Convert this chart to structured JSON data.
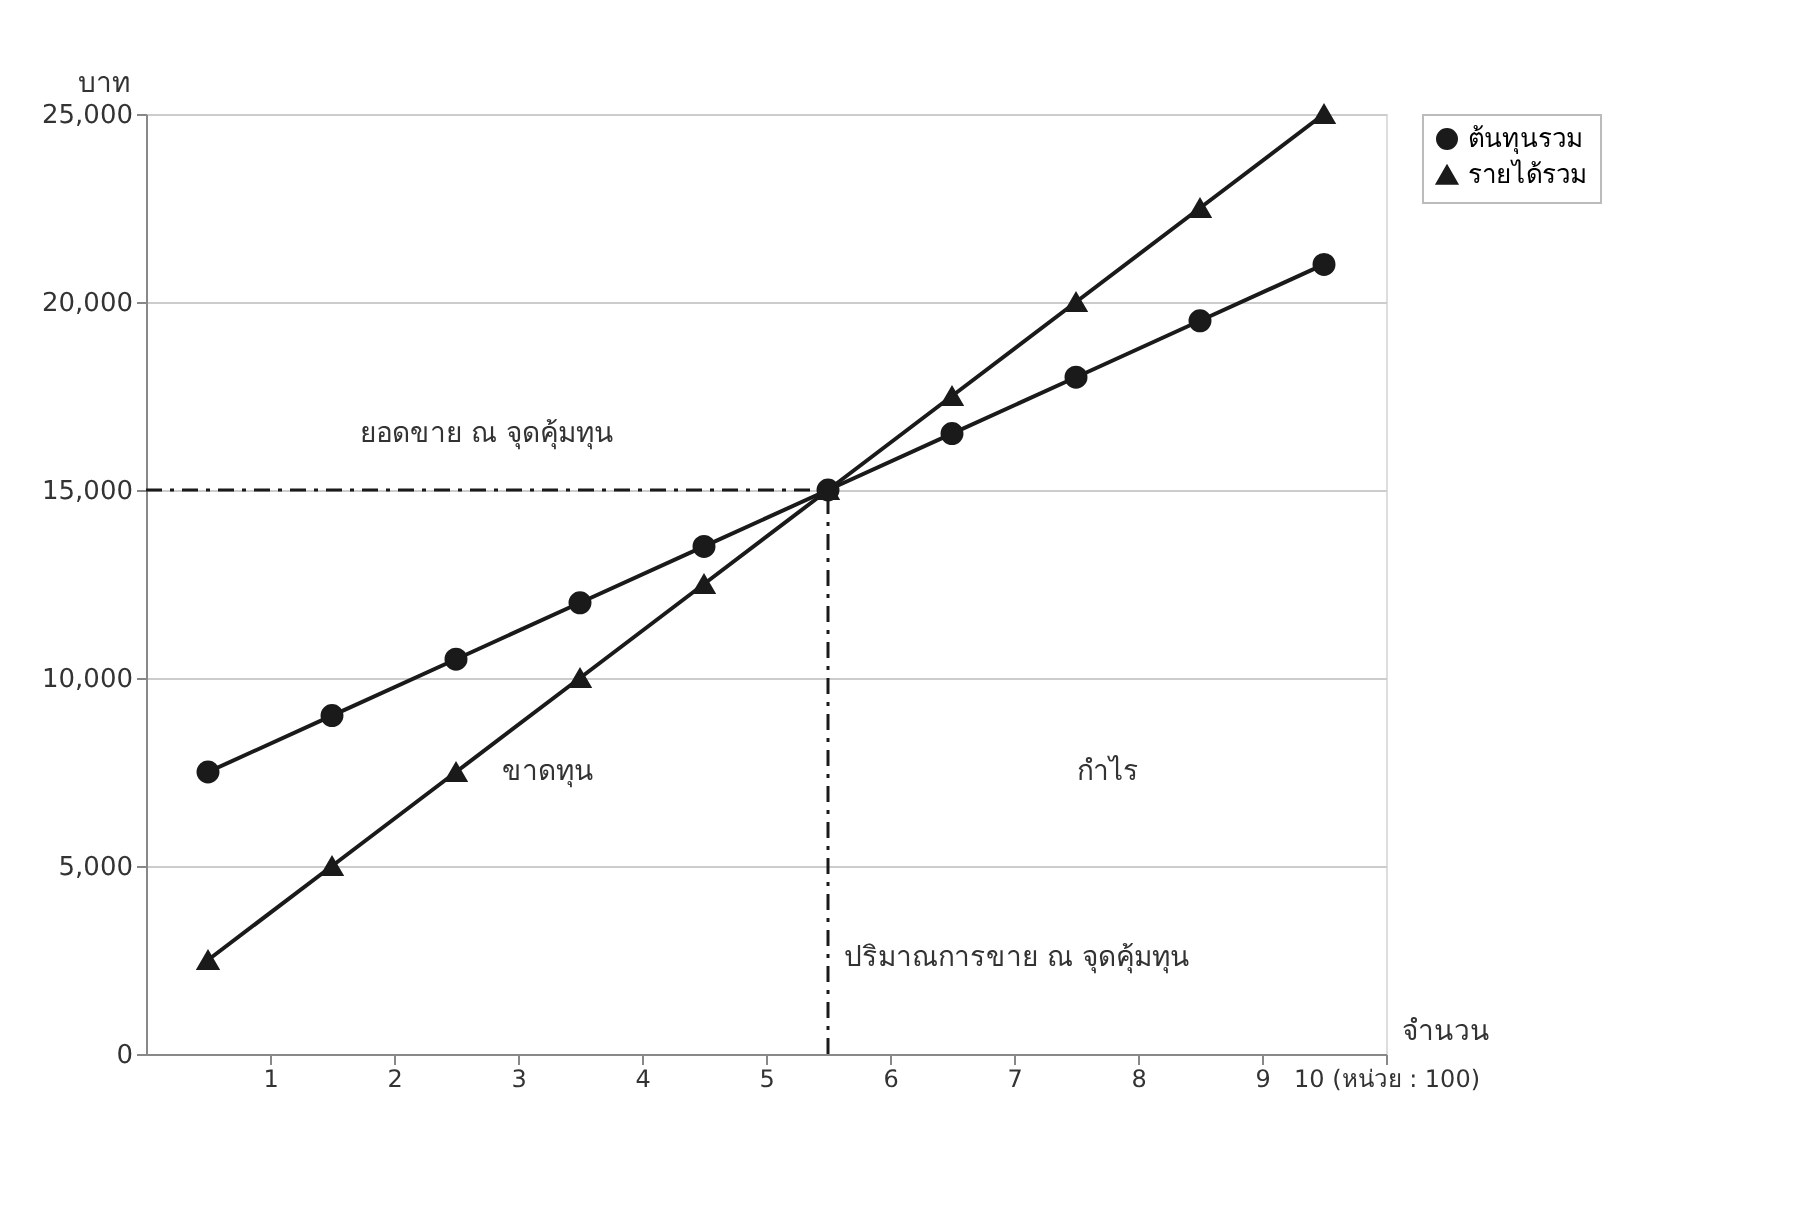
{
  "chart_data": {
    "type": "line",
    "x": [
      0.5,
      1.5,
      2.5,
      3.5,
      4.5,
      5.5,
      6.5,
      7.5,
      8.5,
      9.5
    ],
    "series": [
      {
        "name": "ต้นทุนรวม",
        "color": "#1a1a1a",
        "marker": "circle",
        "values": [
          7500,
          9000,
          10500,
          12000,
          13500,
          15000,
          16500,
          18000,
          19500,
          21000
        ]
      },
      {
        "name": "รายได้รวม",
        "color": "#1a1a1a",
        "marker": "triangle",
        "values": [
          2500,
          5000,
          7500,
          10000,
          12500,
          15000,
          17500,
          20000,
          22500,
          25000
        ]
      }
    ],
    "xlabel": "จำนวน",
    "ylabel": "บาท",
    "xlim": [
      0,
      10
    ],
    "xticks": [
      1,
      2,
      3,
      4,
      5,
      6,
      7,
      8,
      9,
      {
        "value": 10,
        "label": "10 (หน่วย : 100)"
      }
    ],
    "ylim": [
      0,
      25000
    ],
    "yticks": [
      0,
      {
        "value": 5000,
        "label": "5,000"
      },
      {
        "value": 10000,
        "label": "10,000"
      },
      {
        "value": 15000,
        "label": "15,000"
      },
      {
        "value": 20000,
        "label": "20,000"
      },
      {
        "value": 25000,
        "label": "25,000"
      }
    ],
    "ref_lines": [
      {
        "axis": "y",
        "value": 15000,
        "label": "ยอดขาย ณ จุดคุ้มทุน",
        "color": "#1a1a1a",
        "line_style": "dashed"
      },
      {
        "axis": "x",
        "value": 5.5,
        "label": "ปริมาณการขาย ณ จุดคุ้มทุน",
        "color": "#1a1a1a",
        "line_style": "dashed"
      }
    ],
    "annotations": [
      "ขาดทุน",
      "กำไร"
    ],
    "grid": "y",
    "legend": "right",
    "line_style": "solid"
  }
}
